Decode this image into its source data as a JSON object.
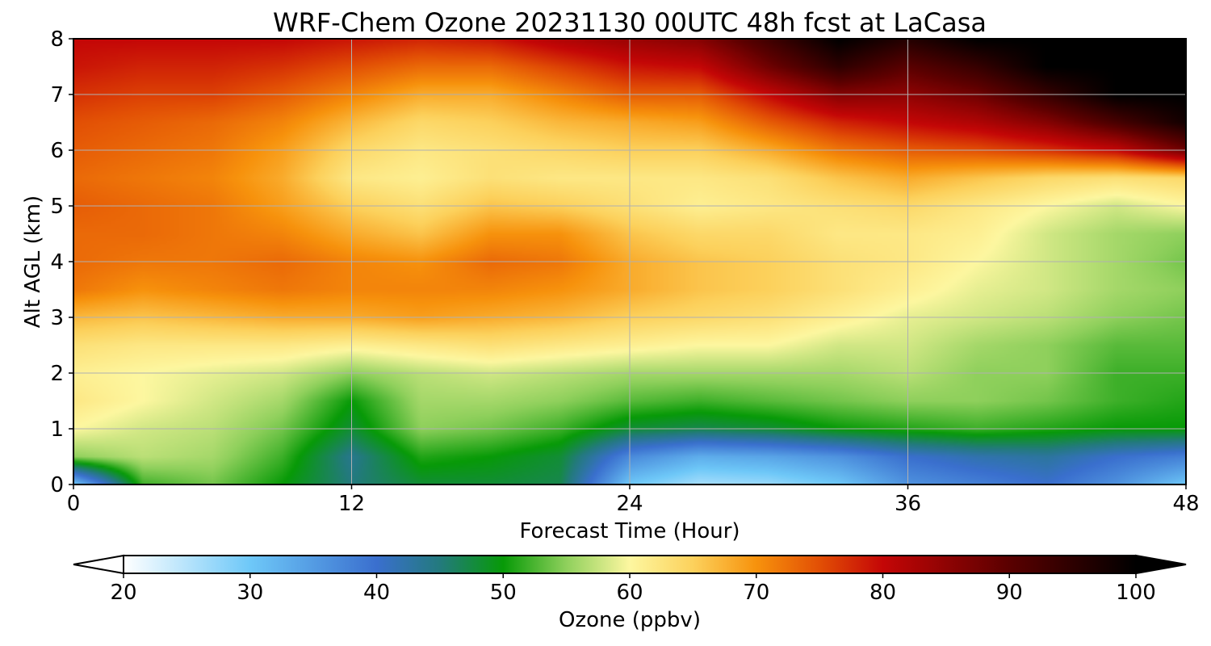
{
  "chart_data": {
    "type": "heatmap",
    "title": "WRF-Chem Ozone  20231130 00UTC 48h fcst at LaCasa",
    "xlabel": "Forecast Time (Hour)",
    "ylabel": "Alt AGL (km)",
    "xlim": [
      0,
      48
    ],
    "ylim": [
      0,
      8
    ],
    "x_ticks": [
      0,
      12,
      24,
      36,
      48
    ],
    "y_ticks": [
      0,
      1,
      2,
      3,
      4,
      5,
      6,
      7,
      8
    ],
    "grid": true,
    "x": [
      0,
      3,
      6,
      9,
      12,
      15,
      18,
      21,
      24,
      27,
      30,
      33,
      36,
      39,
      42,
      45,
      48
    ],
    "y": [
      0,
      0.5,
      1,
      1.5,
      2,
      2.5,
      3,
      3.5,
      4,
      4.5,
      5,
      5.5,
      6,
      6.5,
      7,
      7.5,
      8
    ],
    "z": [
      [
        30,
        52,
        54,
        50,
        45,
        48,
        48,
        47,
        30,
        26,
        27,
        30,
        36,
        38,
        40,
        36,
        30
      ],
      [
        55,
        57,
        56,
        52,
        44,
        51,
        50,
        48,
        37,
        33,
        34,
        36,
        40,
        42,
        43,
        40,
        38
      ],
      [
        60,
        58,
        57,
        54,
        48,
        55,
        54,
        52,
        48,
        47,
        48,
        50,
        51,
        52,
        51,
        50,
        50
      ],
      [
        62,
        60,
        58,
        56,
        50,
        56,
        56,
        55,
        53,
        52,
        53,
        54,
        55,
        55,
        54,
        52,
        51
      ],
      [
        61,
        60,
        59,
        58,
        55,
        57,
        58,
        57,
        56,
        56,
        56,
        56,
        57,
        55,
        55,
        52,
        52
      ],
      [
        63,
        62,
        62,
        62,
        61,
        62,
        63,
        62,
        61,
        60,
        60,
        58,
        58,
        56,
        55,
        53,
        53
      ],
      [
        67,
        66,
        67,
        68,
        68,
        69,
        68,
        67,
        65,
        64,
        63,
        61,
        59,
        58,
        57,
        55,
        54
      ],
      [
        72,
        70,
        71,
        72,
        71,
        71,
        71,
        70,
        68,
        66,
        65,
        63,
        61,
        59,
        58,
        56,
        55
      ],
      [
        73,
        72,
        72,
        73,
        71,
        70,
        73,
        72,
        68,
        66,
        65,
        63,
        62,
        60,
        58,
        56,
        54
      ],
      [
        73,
        73,
        72,
        71,
        68,
        66,
        70,
        70,
        66,
        64,
        64,
        62,
        62,
        61,
        58,
        56,
        55
      ],
      [
        74,
        73,
        72,
        69,
        65,
        63,
        66,
        65,
        63,
        61,
        62,
        63,
        64,
        62,
        60,
        58,
        60
      ],
      [
        73,
        72,
        71,
        68,
        62,
        61,
        63,
        62,
        62,
        62,
        63,
        66,
        68,
        66,
        64,
        63,
        64
      ],
      [
        74,
        73,
        72,
        69,
        64,
        62,
        63,
        64,
        65,
        65,
        68,
        72,
        74,
        75,
        77,
        80,
        88
      ],
      [
        75,
        74,
        73,
        71,
        67,
        64,
        65,
        67,
        68,
        69,
        74,
        78,
        80,
        82,
        86,
        92,
        98
      ],
      [
        77,
        76,
        76,
        74,
        71,
        68,
        68,
        71,
        74,
        74,
        80,
        86,
        85,
        88,
        94,
        100,
        100
      ],
      [
        79,
        78,
        78,
        77,
        75,
        73,
        73,
        76,
        79,
        80,
        88,
        95,
        90,
        94,
        100,
        100,
        100
      ],
      [
        80,
        80,
        80,
        80,
        79,
        78,
        79,
        82,
        84,
        86,
        93,
        100,
        96,
        100,
        100,
        100,
        100
      ]
    ],
    "colorbar": {
      "label": "Ozone  (ppbv)",
      "min": 20,
      "max": 100,
      "ticks": [
        20,
        30,
        40,
        50,
        60,
        70,
        80,
        90,
        100
      ],
      "extend": "both",
      "stops": [
        {
          "v": 20,
          "c": "#ffffff"
        },
        {
          "v": 30,
          "c": "#6ec8f8"
        },
        {
          "v": 40,
          "c": "#3a6fce"
        },
        {
          "v": 45,
          "c": "#237a7d"
        },
        {
          "v": 50,
          "c": "#079a07"
        },
        {
          "v": 55,
          "c": "#8fd05c"
        },
        {
          "v": 60,
          "c": "#fdf7a0"
        },
        {
          "v": 65,
          "c": "#fcd15c"
        },
        {
          "v": 70,
          "c": "#f7920c"
        },
        {
          "v": 75,
          "c": "#e24f05"
        },
        {
          "v": 80,
          "c": "#c40606"
        },
        {
          "v": 90,
          "c": "#5a0000"
        },
        {
          "v": 100,
          "c": "#000000"
        }
      ]
    }
  }
}
